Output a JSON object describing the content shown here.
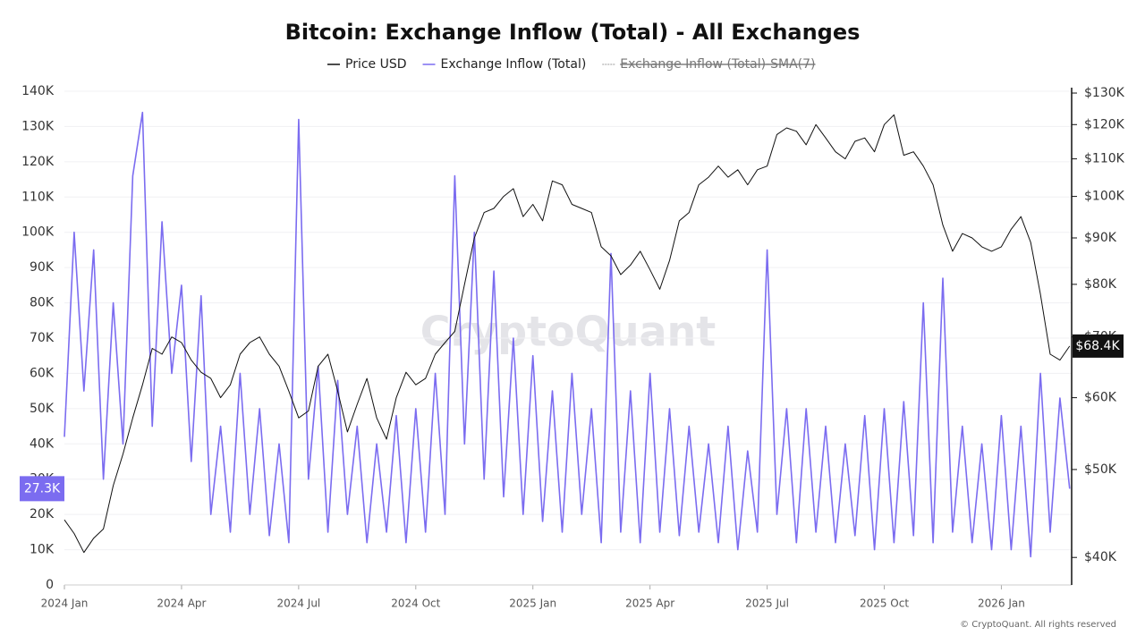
{
  "chart_data": {
    "type": "line",
    "title": "Bitcoin: Exchange Inflow (Total) - All Exchanges",
    "watermark": "CryptoQuant",
    "footer": "© CryptoQuant. All rights reserved",
    "x": [
      0,
      0.25,
      0.5,
      0.75,
      1,
      1.25,
      1.5,
      1.75,
      2,
      2.25,
      2.5,
      2.75,
      3,
      3.25,
      3.5,
      3.75,
      4,
      4.25,
      4.5,
      4.75,
      5,
      5.25,
      5.5,
      5.75,
      6,
      6.25,
      6.5,
      6.75,
      7,
      7.25,
      7.5,
      7.75,
      8,
      8.25,
      8.5,
      8.75,
      9,
      9.25,
      9.5,
      9.75,
      10,
      10.25,
      10.5,
      10.75,
      11,
      11.25,
      11.5,
      11.75,
      12,
      12.25,
      12.5,
      12.75,
      13,
      13.25,
      13.5,
      13.75,
      14,
      14.25,
      14.5,
      14.75,
      15,
      15.25,
      15.5,
      15.75,
      16,
      16.25,
      16.5,
      16.75,
      17,
      17.25,
      17.5,
      17.75,
      18,
      18.25,
      18.5,
      18.75,
      19,
      19.25,
      19.5,
      19.75,
      20,
      20.25,
      20.5,
      20.75,
      21,
      21.25,
      21.5,
      21.75,
      22,
      22.25,
      22.5,
      22.75,
      23,
      23.25,
      23.5,
      23.75,
      24,
      24.25,
      24.5,
      24.75,
      25,
      25.25,
      25.5,
      25.75
    ],
    "xlim": [
      0,
      25.8
    ],
    "xticks": [
      {
        "value": 0,
        "label": "2024 Jan"
      },
      {
        "value": 3,
        "label": "2024 Apr"
      },
      {
        "value": 6,
        "label": "2024 Jul"
      },
      {
        "value": 9,
        "label": "2024 Oct"
      },
      {
        "value": 12,
        "label": "2025 Jan"
      },
      {
        "value": 15,
        "label": "2025 Apr"
      },
      {
        "value": 18,
        "label": "2025 Jul"
      },
      {
        "value": 21,
        "label": "2025 Oct"
      },
      {
        "value": 24,
        "label": "2026 Jan"
      }
    ],
    "ylim": [
      0,
      140000
    ],
    "yticks": [
      0,
      {
        "value": 10000,
        "label": "10K"
      },
      {
        "value": 20000,
        "label": "20K"
      },
      {
        "value": 30000,
        "label": "30K"
      },
      {
        "value": 40000,
        "label": "40K"
      },
      {
        "value": 50000,
        "label": "50K"
      },
      {
        "value": 60000,
        "label": "60K"
      },
      {
        "value": 70000,
        "label": "70K"
      },
      {
        "value": 80000,
        "label": "80K"
      },
      {
        "value": 90000,
        "label": "90K"
      },
      {
        "value": 100000,
        "label": "100K"
      },
      {
        "value": 110000,
        "label": "110K"
      },
      {
        "value": 120000,
        "label": "120K"
      },
      {
        "value": 130000,
        "label": "130K"
      },
      {
        "value": 140000,
        "label": "140K"
      }
    ],
    "y2lim": [
      37300,
      130600
    ],
    "y2log": true,
    "y2ticks": [
      {
        "value": 40000,
        "label": "$40K"
      },
      {
        "value": 50000,
        "label": "$50K"
      },
      {
        "value": 60000,
        "label": "$60K"
      },
      {
        "value": 70000,
        "label": "$70K"
      },
      {
        "value": 80000,
        "label": "$80K"
      },
      {
        "value": 90000,
        "label": "$90K"
      },
      {
        "value": 100000,
        "label": "$100K"
      },
      {
        "value": 110000,
        "label": "$110K"
      },
      {
        "value": 120000,
        "label": "$120K"
      },
      {
        "value": 130000,
        "label": "$130K"
      }
    ],
    "grid": true,
    "series": [
      {
        "name": "Price USD",
        "color": "#111111",
        "axis": "y2",
        "last_label": "$68.4K",
        "values": [
          44000,
          42500,
          40500,
          42000,
          43000,
          48000,
          52000,
          57000,
          62000,
          68000,
          67000,
          70000,
          69000,
          66000,
          64000,
          63000,
          60000,
          62000,
          67000,
          69000,
          70000,
          67000,
          65000,
          61000,
          57000,
          58000,
          65000,
          67000,
          61000,
          55000,
          59000,
          63000,
          57000,
          54000,
          60000,
          64000,
          62000,
          63000,
          67000,
          69000,
          71000,
          80000,
          90000,
          96000,
          97000,
          100000,
          102000,
          95000,
          98000,
          94000,
          104000,
          103000,
          98000,
          97000,
          96000,
          88000,
          86000,
          82000,
          84000,
          87000,
          83000,
          79000,
          85000,
          94000,
          96000,
          103000,
          105000,
          108000,
          105000,
          107000,
          103000,
          107000,
          108000,
          117000,
          119000,
          118000,
          114000,
          120000,
          116000,
          112000,
          110000,
          115000,
          116000,
          112000,
          120000,
          123000,
          111000,
          112000,
          108000,
          103000,
          93000,
          87000,
          91000,
          90000,
          88000,
          87000,
          88000,
          92000,
          95000,
          89000,
          78000,
          67000,
          66000,
          68400
        ]
      },
      {
        "name": "Exchange Inflow (Total)",
        "color": "#7b6cf0",
        "last_label": "27.3K",
        "values": [
          42000,
          100000,
          55000,
          95000,
          30000,
          80000,
          40000,
          116000,
          134000,
          45000,
          103000,
          60000,
          85000,
          35000,
          82000,
          20000,
          45000,
          15000,
          60000,
          20000,
          50000,
          14000,
          40000,
          12000,
          132000,
          30000,
          62000,
          15000,
          58000,
          20000,
          45000,
          12000,
          40000,
          15000,
          48000,
          12000,
          50000,
          15000,
          60000,
          20000,
          116000,
          40000,
          100000,
          30000,
          89000,
          25000,
          70000,
          20000,
          65000,
          18000,
          55000,
          15000,
          60000,
          20000,
          50000,
          12000,
          94000,
          15000,
          55000,
          12000,
          60000,
          15000,
          50000,
          14000,
          45000,
          15000,
          40000,
          12000,
          45000,
          10000,
          38000,
          15000,
          95000,
          20000,
          50000,
          12000,
          50000,
          15000,
          45000,
          12000,
          40000,
          14000,
          48000,
          10000,
          50000,
          12000,
          52000,
          14000,
          80000,
          12000,
          87000,
          15000,
          45000,
          12000,
          40000,
          10000,
          48000,
          10000,
          45000,
          8000,
          60000,
          15000,
          53000,
          27300
        ]
      },
      {
        "name": "Exchange Inflow (Total)-SMA(7)",
        "color": "#999999",
        "visible": false
      }
    ]
  }
}
